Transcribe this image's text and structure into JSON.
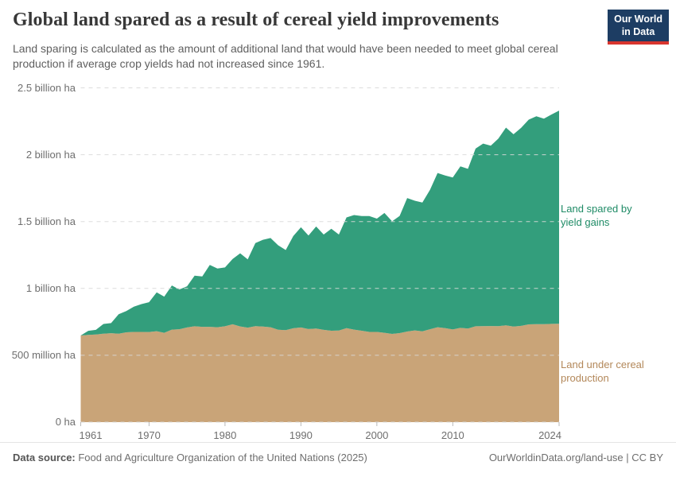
{
  "header": {
    "title": "Global land spared as a result of cereal yield improvements",
    "subtitle": "Land sparing is calculated as the amount of additional land that would have been needed to meet global cereal production if average crop yields had not increased since 1961.",
    "logo": {
      "line1": "Our World",
      "line2": "in Data"
    }
  },
  "chart_data": {
    "type": "area",
    "stacked": true,
    "title": "Global land spared as a result of cereal yield improvements",
    "unit": "billion ha",
    "ylim": [
      0,
      2.5
    ],
    "grid": true,
    "legend_position": "right-inline-labels",
    "x": [
      1961,
      1962,
      1963,
      1964,
      1965,
      1966,
      1967,
      1968,
      1969,
      1970,
      1971,
      1972,
      1973,
      1974,
      1975,
      1976,
      1977,
      1978,
      1979,
      1980,
      1981,
      1982,
      1983,
      1984,
      1985,
      1986,
      1987,
      1988,
      1989,
      1990,
      1991,
      1992,
      1993,
      1994,
      1995,
      1996,
      1997,
      1998,
      1999,
      2000,
      2001,
      2002,
      2003,
      2004,
      2005,
      2006,
      2007,
      2008,
      2009,
      2010,
      2011,
      2012,
      2013,
      2014,
      2015,
      2016,
      2017,
      2018,
      2019,
      2020,
      2021,
      2022,
      2023,
      2024
    ],
    "series": [
      {
        "name": "Land under cereal production",
        "color": "#C9A478",
        "label_color": "#B3885A",
        "values": [
          0.648,
          0.652,
          0.655,
          0.662,
          0.665,
          0.661,
          0.672,
          0.675,
          0.675,
          0.674,
          0.68,
          0.668,
          0.692,
          0.695,
          0.708,
          0.717,
          0.713,
          0.713,
          0.71,
          0.717,
          0.732,
          0.716,
          0.707,
          0.718,
          0.715,
          0.71,
          0.691,
          0.688,
          0.702,
          0.708,
          0.696,
          0.7,
          0.69,
          0.684,
          0.685,
          0.703,
          0.692,
          0.684,
          0.675,
          0.675,
          0.668,
          0.66,
          0.666,
          0.678,
          0.686,
          0.679,
          0.695,
          0.71,
          0.703,
          0.693,
          0.705,
          0.7,
          0.717,
          0.718,
          0.719,
          0.718,
          0.724,
          0.715,
          0.72,
          0.731,
          0.733,
          0.733,
          0.735,
          0.736
        ]
      },
      {
        "name": "Land spared by yield gains",
        "color": "#339E7C",
        "label_color": "#1F8B66",
        "values": [
          0.0,
          0.031,
          0.035,
          0.072,
          0.076,
          0.146,
          0.159,
          0.189,
          0.208,
          0.223,
          0.29,
          0.271,
          0.33,
          0.297,
          0.308,
          0.378,
          0.376,
          0.463,
          0.439,
          0.44,
          0.488,
          0.547,
          0.51,
          0.621,
          0.649,
          0.667,
          0.632,
          0.599,
          0.69,
          0.749,
          0.7,
          0.763,
          0.713,
          0.762,
          0.718,
          0.828,
          0.857,
          0.857,
          0.866,
          0.847,
          0.896,
          0.842,
          0.876,
          0.998,
          0.97,
          0.963,
          1.043,
          1.153,
          1.142,
          1.137,
          1.208,
          1.194,
          1.329,
          1.365,
          1.348,
          1.402,
          1.479,
          1.438,
          1.481,
          1.531,
          1.555,
          1.537,
          1.566,
          1.594
        ]
      }
    ],
    "y_ticks": [
      {
        "value": 0.0,
        "label": "0 ha"
      },
      {
        "value": 0.5,
        "label": "500 million ha"
      },
      {
        "value": 1.0,
        "label": "1 billion ha"
      },
      {
        "value": 1.5,
        "label": "1.5 billion ha"
      },
      {
        "value": 2.0,
        "label": "2 billion ha"
      },
      {
        "value": 2.5,
        "label": "2.5 billion ha"
      }
    ],
    "x_ticks": [
      1961,
      1970,
      1980,
      1990,
      2000,
      2010,
      2024
    ],
    "right_labels": {
      "spared": [
        "Land spared by",
        "yield gains"
      ],
      "under": [
        "Land under cereal",
        "production"
      ]
    }
  },
  "footer": {
    "source_label": "Data source:",
    "source_text": " Food and Agriculture Organization of the United Nations (2025)",
    "link": "OurWorldinData.org/land-use",
    "separator": " | ",
    "license": "CC BY"
  }
}
